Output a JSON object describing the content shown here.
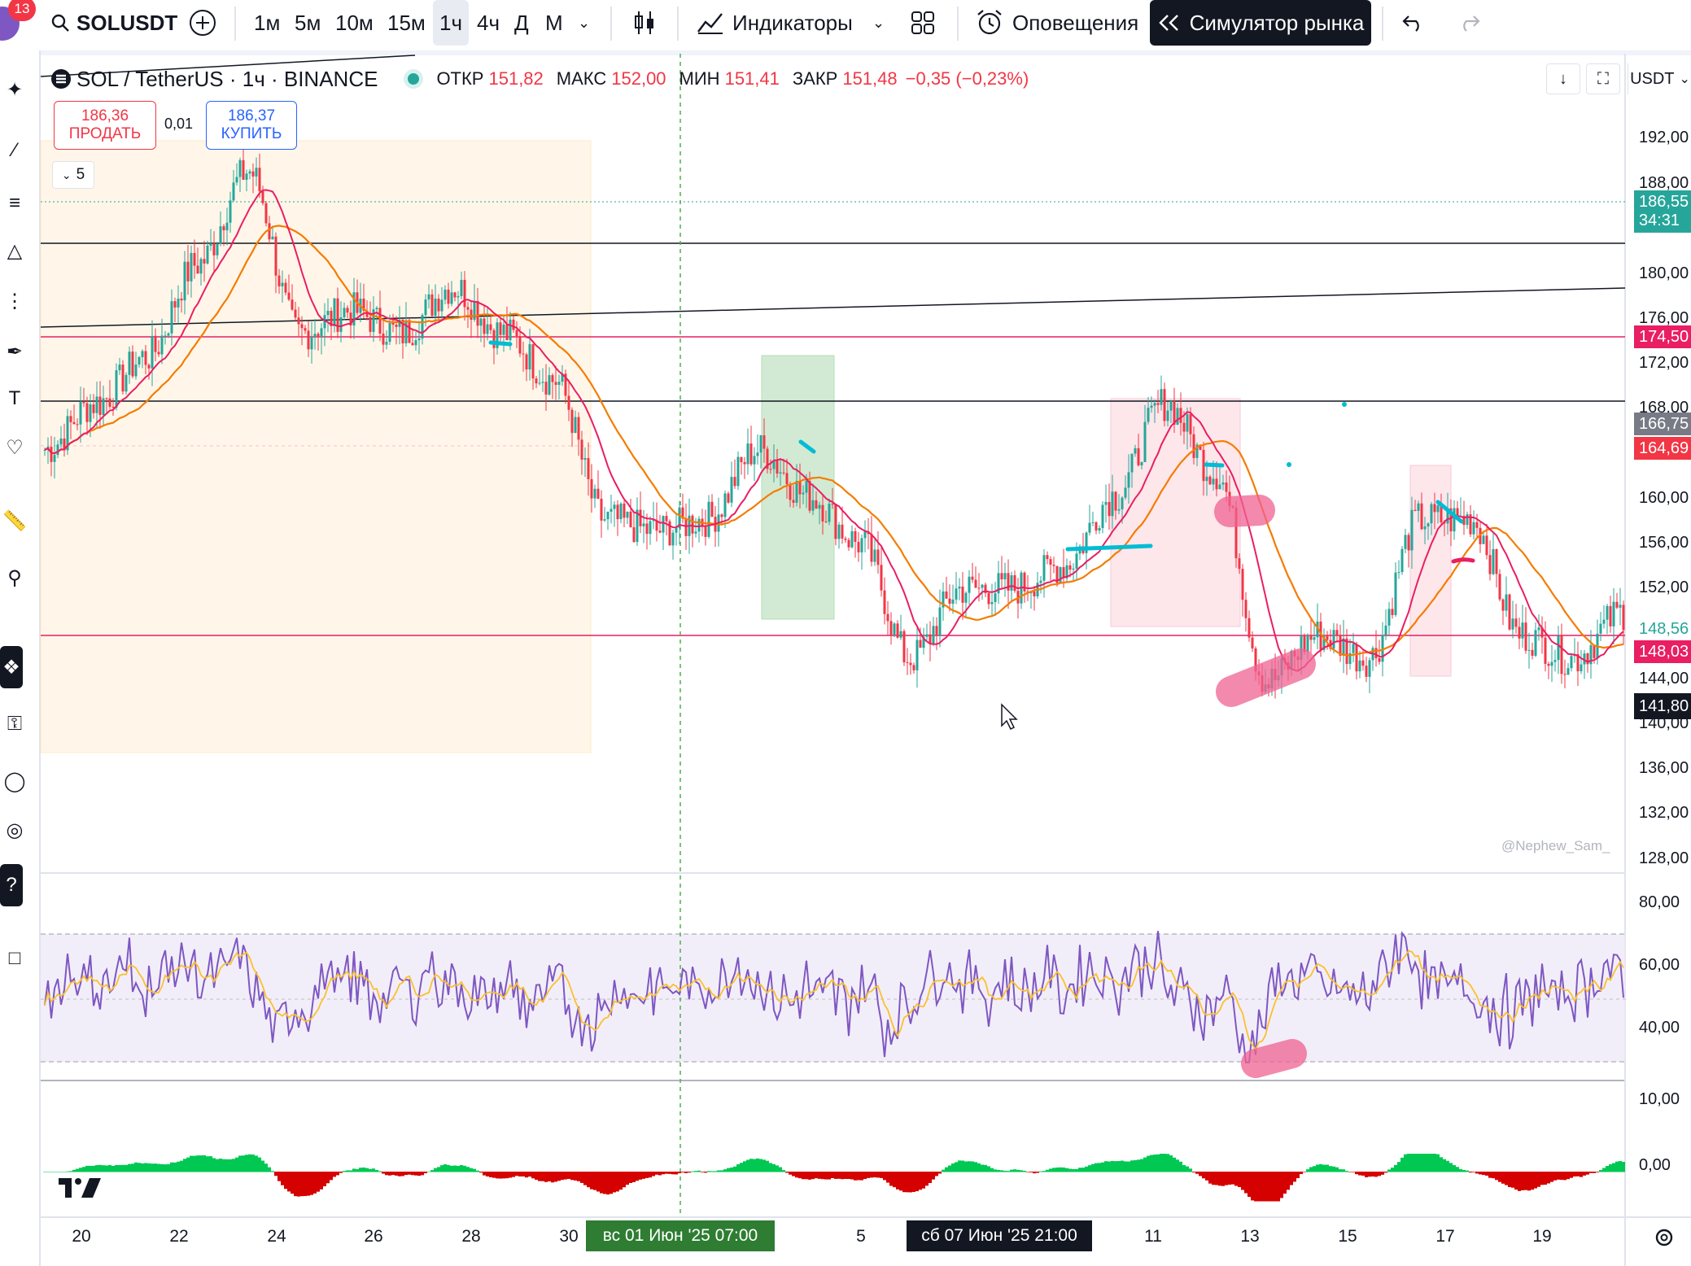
{
  "topbar": {
    "notifications_count": "13",
    "symbol": "SOLUSDT",
    "timeframes": [
      "1м",
      "5м",
      "10м",
      "15м",
      "1ч",
      "4ч",
      "Д",
      "М"
    ],
    "selected_timeframe": "1ч",
    "indicators_label": "Индикаторы",
    "alerts_label": "Оповещения",
    "simulator_label": "Симулятор рынка"
  },
  "legend": {
    "title": "SOL / TetherUS · 1ч · BINANCE",
    "open_label": "ОТКР",
    "open": "151,82",
    "high_label": "МАКС",
    "high": "152,00",
    "low_label": "МИН",
    "low": "151,41",
    "close_label": "ЗАКР",
    "close": "151,48",
    "change": "−0,35 (−0,23%)"
  },
  "trade": {
    "sell_price": "186,36",
    "sell_label": "ПРОДАТЬ",
    "spread": "0,01",
    "buy_price": "186,37",
    "buy_label": "КУПИТЬ"
  },
  "collapse_count": "5",
  "currency": "USDT",
  "watermark": "@Nephew_Sam_",
  "price_axis": {
    "labels": [
      "192,00",
      "188,00",
      "180,00",
      "176,00",
      "172,00",
      "168,00",
      "160,00",
      "156,00",
      "152,00",
      "144,00",
      "140,00",
      "136,00",
      "132,00",
      "128,00"
    ],
    "tags": [
      {
        "text": "186,55",
        "sub": "34:31",
        "color": "#26a69a"
      },
      {
        "text": "174,50",
        "color": "#e91e63"
      },
      {
        "text": "166,75",
        "color": "#787b86"
      },
      {
        "text": "164,69",
        "color": "#f23645"
      },
      {
        "text": "148,56",
        "color": "#ffffff",
        "textcolor": "#26a69a"
      },
      {
        "text": "148,03",
        "color": "#e91e63"
      },
      {
        "text": "141,80",
        "color": "#131722"
      }
    ]
  },
  "rsi_axis": [
    "80,00",
    "60,00",
    "40,00"
  ],
  "macd_axis": [
    "10,00",
    "0,00"
  ],
  "time_axis": {
    "labels": [
      "20",
      "22",
      "24",
      "26",
      "28",
      "30",
      "5",
      "11",
      "13",
      "15",
      "17",
      "19"
    ],
    "highlight_1": "вс 01 Июн '25   07:00",
    "highlight_2": "сб 07 Июн '25   21:00"
  },
  "chart_data": {
    "type": "line",
    "symbol": "SOL / TetherUS",
    "interval": "1ч",
    "ylim": [
      126,
      194
    ],
    "date_ticks": [
      "20",
      "22",
      "24",
      "26",
      "28",
      "30",
      "01 Июн",
      "5",
      "07 Июн",
      "11",
      "13",
      "15",
      "17",
      "19"
    ],
    "price_path_approx": [
      {
        "x": "20",
        "y": 162
      },
      {
        "x": "21",
        "y": 166
      },
      {
        "x": "22",
        "y": 170
      },
      {
        "x": "23",
        "y": 178
      },
      {
        "x": "24",
        "y": 186
      },
      {
        "x": "25",
        "y": 172
      },
      {
        "x": "26",
        "y": 174
      },
      {
        "x": "27",
        "y": 172
      },
      {
        "x": "28",
        "y": 176
      },
      {
        "x": "29",
        "y": 172
      },
      {
        "x": "30",
        "y": 168
      },
      {
        "x": "31",
        "y": 156
      },
      {
        "x": "01 Июн",
        "y": 155
      },
      {
        "x": "02 Июн",
        "y": 156
      },
      {
        "x": "03 Июн",
        "y": 162
      },
      {
        "x": "04 Июн",
        "y": 158
      },
      {
        "x": "05 Июн",
        "y": 154
      },
      {
        "x": "06 Июн",
        "y": 144
      },
      {
        "x": "07 Июн",
        "y": 150
      },
      {
        "x": "08 Июн",
        "y": 150
      },
      {
        "x": "09 Июн",
        "y": 152
      },
      {
        "x": "10 Июн",
        "y": 158
      },
      {
        "x": "11 Июн",
        "y": 166
      },
      {
        "x": "12 Июн",
        "y": 160
      },
      {
        "x": "13 Июн",
        "y": 142
      },
      {
        "x": "14 Июн",
        "y": 146
      },
      {
        "x": "15 Июн",
        "y": 144
      },
      {
        "x": "16 Июн",
        "y": 156
      },
      {
        "x": "17 Июн",
        "y": 156
      },
      {
        "x": "18 Июн",
        "y": 146
      },
      {
        "x": "19 Июн",
        "y": 144
      },
      {
        "x": "20 Июн",
        "y": 148
      }
    ],
    "horizontal_levels": [
      182,
      174.5,
      168,
      148.03
    ],
    "rsi_range": [
      30,
      70
    ]
  }
}
